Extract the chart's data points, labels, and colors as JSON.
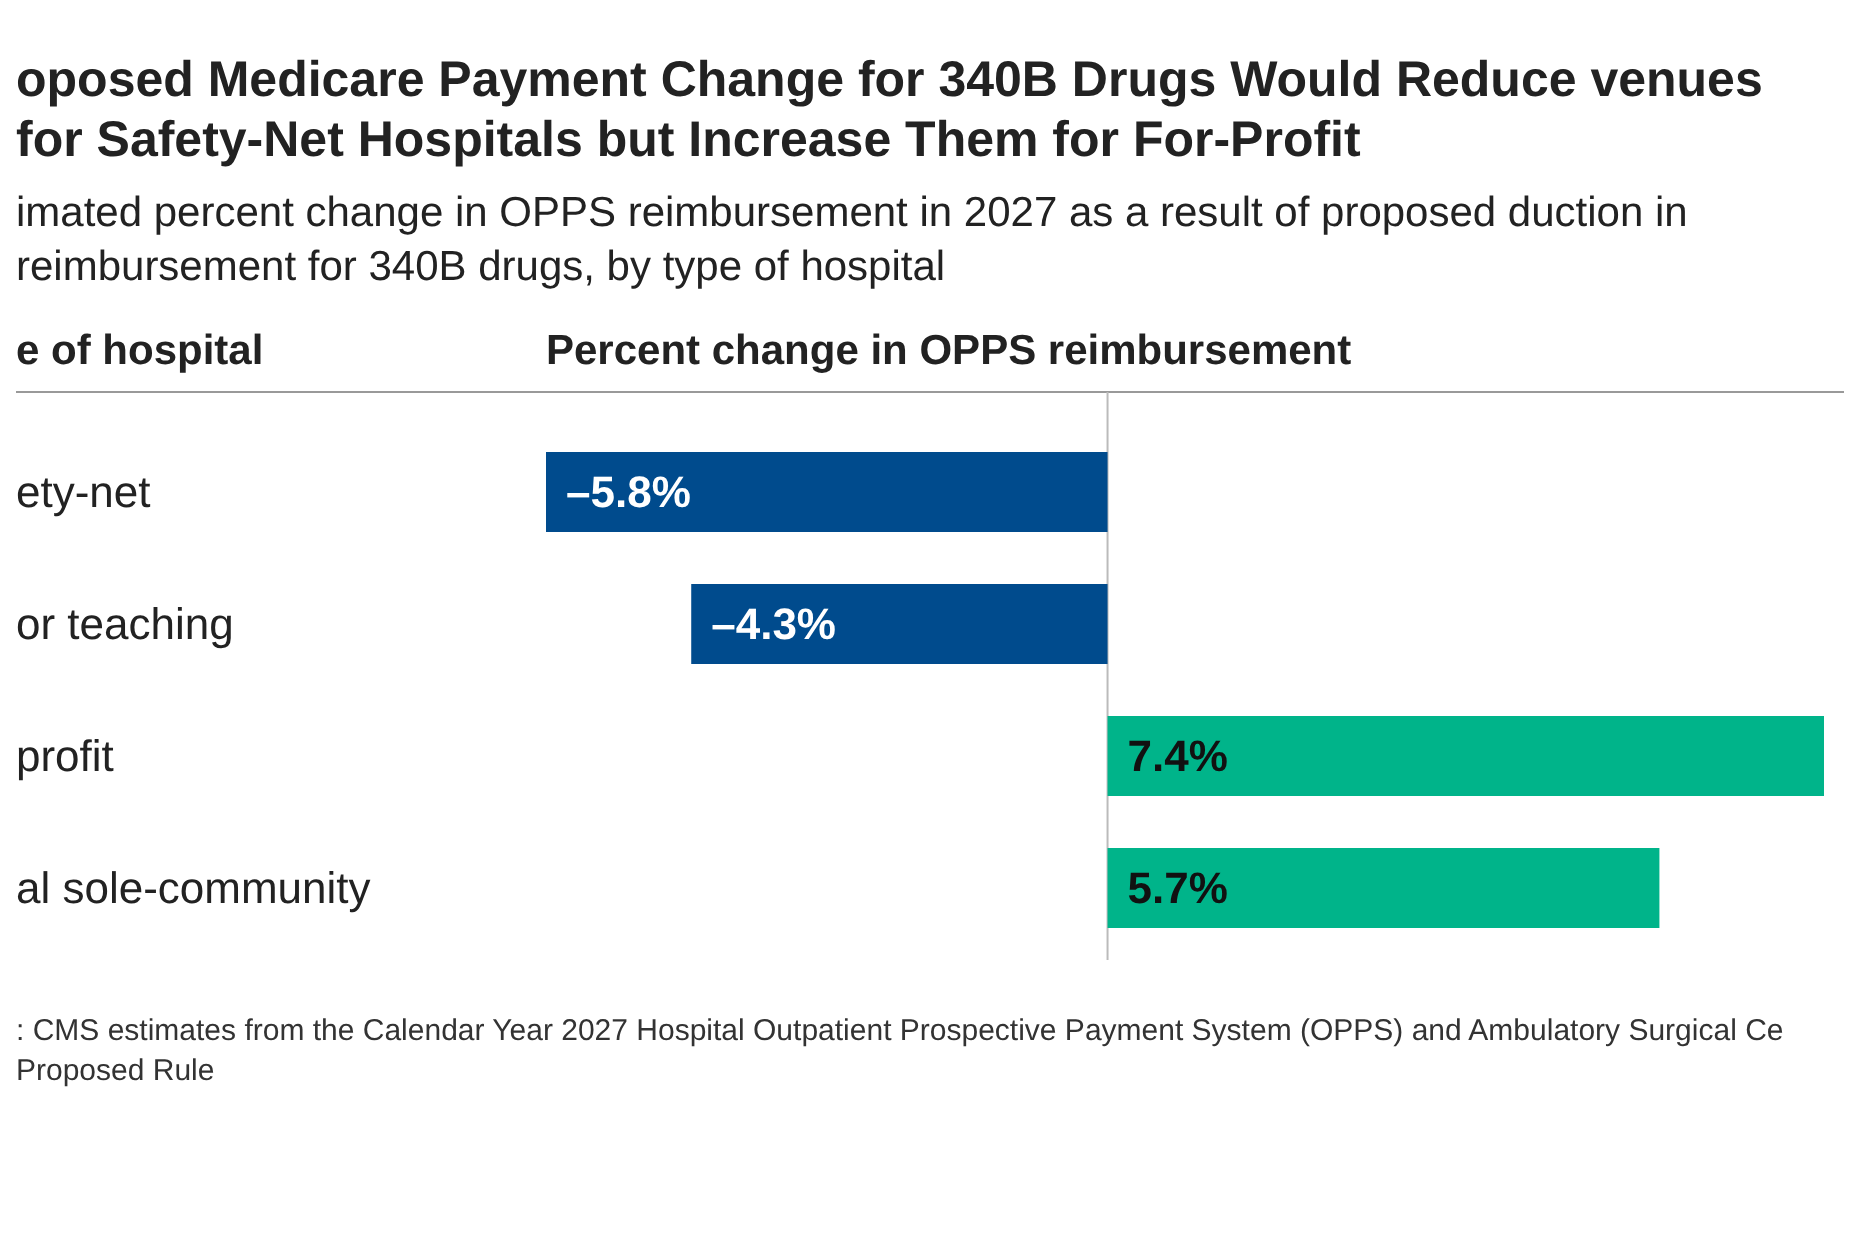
{
  "chart_data": {
    "type": "bar",
    "orientation": "horizontal",
    "title": "oposed Medicare Payment Change for 340B Drugs Would Reduce venues for Safety-Net Hospitals but Increase Them for For-Profit",
    "subtitle": "imated percent change in OPPS reimbursement in 2027 as a result of proposed duction in reimbursement for 340B drugs, by type of hospital",
    "ylabel": "e of hospital",
    "xlabel": "Percent change in OPPS reimbursement",
    "categories": [
      "ety-net",
      "or teaching",
      "profit",
      "al sole-community"
    ],
    "values": [
      -5.8,
      -4.3,
      7.4,
      5.7
    ],
    "value_labels": [
      "–5.8%",
      "–4.3%",
      "7.4%",
      "5.7%"
    ],
    "colors": [
      "#004b8d",
      "#004b8d",
      "#00b48a",
      "#00b48a"
    ],
    "annotations": [
      ": CMS estimates from the Calendar Year 2027 Hospital Outpatient Prospective Payment System (OPPS) and Ambulatory Surgical Ce Proposed Rule"
    ]
  }
}
